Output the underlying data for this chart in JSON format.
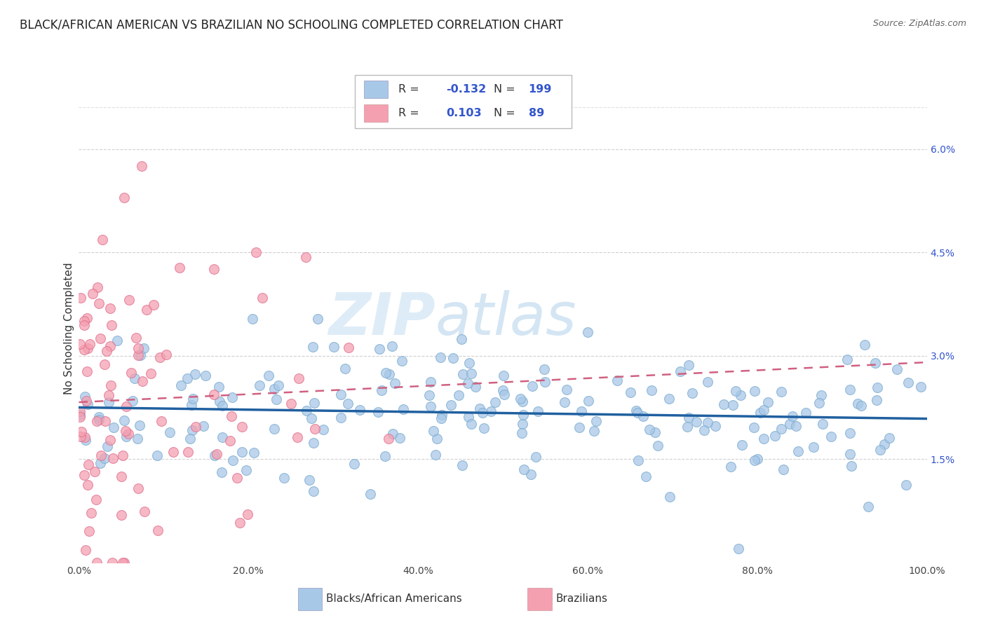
{
  "title": "BLACK/AFRICAN AMERICAN VS BRAZILIAN NO SCHOOLING COMPLETED CORRELATION CHART",
  "source": "Source: ZipAtlas.com",
  "ylabel": "No Schooling Completed",
  "watermark_zip": "ZIP",
  "watermark_atlas": "atlas",
  "blue_R": -0.132,
  "blue_N": 199,
  "pink_R": 0.103,
  "pink_N": 89,
  "blue_color": "#a8c8e8",
  "pink_color": "#f4a0b0",
  "blue_edge_color": "#7aaace",
  "pink_edge_color": "#e07090",
  "blue_line_color": "#2060a0",
  "pink_line_color": "#d06080",
  "legend_label_blue": "Blacks/African Americans",
  "legend_label_pink": "Brazilians",
  "x_min": 0.0,
  "x_max": 100.0,
  "y_min": 0.0,
  "y_max": 6.8,
  "y_ticks": [
    1.5,
    3.0,
    4.5,
    6.0
  ],
  "x_ticks": [
    0.0,
    20.0,
    40.0,
    60.0,
    80.0,
    100.0
  ],
  "background_color": "#ffffff",
  "grid_color": "#cccccc",
  "title_fontsize": 12,
  "axis_label_fontsize": 11,
  "tick_fontsize": 10,
  "legend_text_color": "#3355cc",
  "watermark_color_zip": "#c8ddf0",
  "watermark_color_atlas": "#b0cce8"
}
